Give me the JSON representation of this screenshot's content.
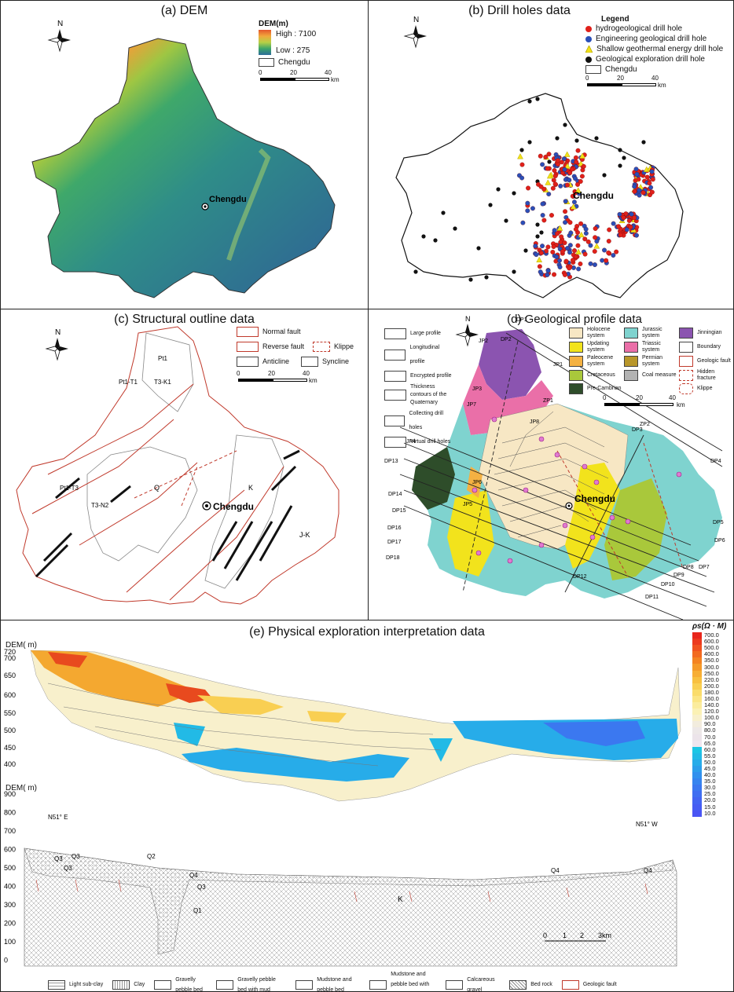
{
  "panel_a": {
    "title": "(a) DEM",
    "legend_title": "DEM(m)",
    "high": "High : 7100",
    "low": "Low : 275",
    "boundary": "Chengdu",
    "scale": [
      "0",
      "20",
      "40"
    ],
    "scale_unit": "km",
    "city": "Chengdu",
    "north": "N"
  },
  "panel_b": {
    "title": "(b) Drill holes data",
    "legend_title": "Legend",
    "items": [
      {
        "label": "hydrogeological drill hole",
        "color": "#e0201a",
        "shape": "circle"
      },
      {
        "label": "Engineering geological drill hole",
        "color": "#2a4fb8",
        "shape": "circle"
      },
      {
        "label": "Shallow geothermal energy drill hole",
        "color": "#f2e21a",
        "shape": "triangle"
      },
      {
        "label": "Geological exploration drill hole",
        "color": "#111111",
        "shape": "circle"
      }
    ],
    "boundary": "Chengdu",
    "scale": [
      "0",
      "20",
      "40"
    ],
    "scale_unit": "km",
    "city": "Chengdu",
    "north": "N"
  },
  "panel_c": {
    "title": "(c) Structural outline data",
    "legend": [
      "Normal fault",
      "Reverse fault",
      "Klippe",
      "Anticline",
      "Syncline"
    ],
    "scale": [
      "0",
      "20",
      "40"
    ],
    "scale_unit": "km",
    "city": "Chengdu",
    "north": "N",
    "units": [
      "Pt1-T3",
      "T3-K1",
      "T3-N2",
      "Q",
      "J-K",
      "K",
      "Pt1",
      "Pt1-T1"
    ]
  },
  "panel_d": {
    "title": "(d) Geological profile data",
    "profile_legend": [
      "Large profile",
      "Longitudinal profile",
      "Encrypted profile",
      "Thickness contours of the Quaternary",
      "Collecting drill holes",
      "Virtual drill holes"
    ],
    "profile_codes": [
      "DP1",
      "ZP1",
      "JP1"
    ],
    "system_legend": [
      {
        "label": "Holocene system",
        "color": "#f7e7c4"
      },
      {
        "label": "Jurassic system",
        "color": "#7fd3cf"
      },
      {
        "label": "Jinningian",
        "color": "#8b54b0"
      },
      {
        "label": "Updating system",
        "color": "#f2e31c"
      },
      {
        "label": "Triassic system",
        "color": "#ea6fa8"
      },
      {
        "label": "Boundary",
        "color": "#ffffff"
      },
      {
        "label": "Paleocene system",
        "color": "#f4b142"
      },
      {
        "label": "Permian system",
        "color": "#b8962a"
      },
      {
        "label": "Geologic fault",
        "color": "#ffffff"
      },
      {
        "label": "Cretaceous",
        "color": "#a9c83b"
      },
      {
        "label": "Coal measure",
        "color": "#b3b3b3"
      },
      {
        "label": "Hidden fracture",
        "color": "#ffffff"
      },
      {
        "label": "Pre-Cambrian",
        "color": "#2e4d2a"
      },
      {
        "label": "Klippe",
        "color": "#ffffff"
      }
    ],
    "scale": [
      "0",
      "20",
      "40"
    ],
    "scale_unit": "km",
    "city": "Chengdu",
    "north": "N",
    "labels": [
      "DP1",
      "DP2",
      "DP3",
      "DP4",
      "DP5",
      "DP6",
      "DP7",
      "DP8",
      "DP9",
      "DP10",
      "DP11",
      "DP12",
      "DP13",
      "DP14",
      "DP15",
      "DP16",
      "DP17",
      "DP18",
      "JP1",
      "JP2",
      "JP3",
      "JP4",
      "JP5",
      "JP6",
      "JP7",
      "JP8",
      "ZP1",
      "ZP2"
    ]
  },
  "panel_e": {
    "title": "(e) Physical exploration interpretation data",
    "dem_label": "DEM( m)",
    "y_ticks_top": [
      "720",
      "700",
      "650",
      "600",
      "550",
      "500",
      "450",
      "400"
    ],
    "y_ticks_bottom": [
      "900",
      "800",
      "700",
      "600",
      "500",
      "400",
      "300",
      "200",
      "100",
      "0"
    ],
    "direction_left": "N51° E",
    "direction_right": "N51° W",
    "colorbar_title": "ρs(Ω · M)",
    "colorbar_values": [
      "700.0",
      "600.0",
      "500.0",
      "400.0",
      "350.0",
      "300.0",
      "250.0",
      "220.0",
      "200.0",
      "180.0",
      "160.0",
      "140.0",
      "120.0",
      "100.0",
      "90.0",
      "80.0",
      "70.0",
      "65.0",
      "60.0",
      "55.0",
      "50.0",
      "45.0",
      "40.0",
      "35.0",
      "30.0",
      "25.0",
      "20.0",
      "15.0",
      "10.0"
    ],
    "colorbar_colors": [
      "#e8261c",
      "#ec3a1e",
      "#f0521f",
      "#f26a20",
      "#f48322",
      "#f59a2a",
      "#f7ae35",
      "#f8c040",
      "#f9cf52",
      "#fadc6b",
      "#fbe584",
      "#fbec9d",
      "#fbf1b5",
      "#f8f0cc",
      "#f2ecde",
      "#ede8e8",
      "#ece4ea",
      "#efe6ef",
      "#1cc6e4",
      "#22bae6",
      "#27ace9",
      "#2c9eeb",
      "#3190ee",
      "#3684ef",
      "#3b78f0",
      "#3f6ef1",
      "#4364f2",
      "#465cf3",
      "#4a55f4"
    ],
    "strata_labels": [
      "Q3",
      "Q3",
      "Q3",
      "Q2",
      "Q4",
      "Q3",
      "Q1",
      "Q4",
      "Q4",
      "K"
    ],
    "scale": [
      "0",
      "1",
      "2",
      "3km"
    ],
    "legend": [
      "Light sub-clay",
      "Clay",
      "Gravelly pebble bed",
      "Gravelly pebble bed with mud",
      "Mudstone and pebble bed",
      "Mudstone and pebble bed with sand",
      "Calcareous gravel",
      "Bed rock",
      "Geologic fault"
    ]
  }
}
